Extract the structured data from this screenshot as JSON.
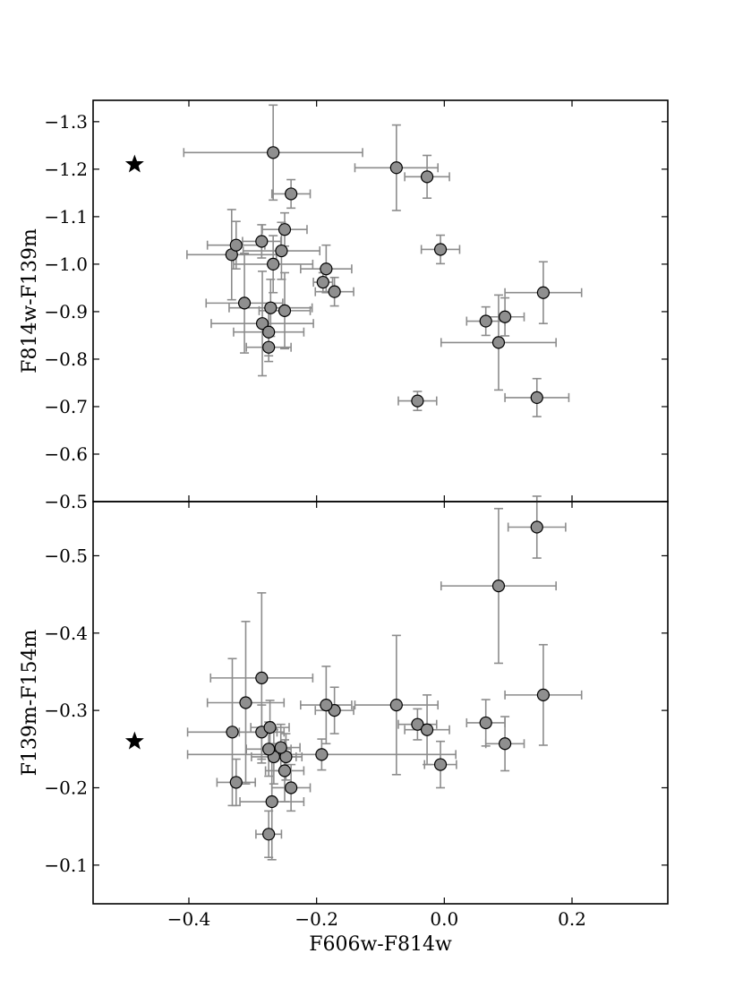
{
  "chart_data": [
    {
      "type": "scatter",
      "panel": "top",
      "xlabel": "",
      "ylabel": "F814w-F139m",
      "xlim": [
        -0.55,
        0.35
      ],
      "ylim": [
        -1.345,
        -0.5
      ],
      "y_inverted": true,
      "xticks": [],
      "yticks": [
        {
          "value": -0.5,
          "label": "−0.5"
        },
        {
          "value": -0.6,
          "label": "−0.6"
        },
        {
          "value": -0.7,
          "label": "−0.7"
        },
        {
          "value": -0.8,
          "label": "−0.8"
        },
        {
          "value": -0.9,
          "label": "−0.9"
        },
        {
          "value": -1.0,
          "label": "−1.0"
        },
        {
          "value": -1.1,
          "label": "−1.1"
        },
        {
          "value": -1.2,
          "label": "−1.2"
        },
        {
          "value": -1.3,
          "label": "−1.3"
        }
      ],
      "reference_star": {
        "x": -0.485,
        "y": -1.21
      },
      "points": [
        {
          "x": -0.285,
          "y": -0.875,
          "xerr": 0.08,
          "yerr": 0.11
        },
        {
          "x": -0.275,
          "y": -0.825,
          "xerr": 0.035,
          "yerr": 0.03
        },
        {
          "x": -0.275,
          "y": -0.857,
          "xerr": 0.055,
          "yerr": 0.05
        },
        {
          "x": -0.272,
          "y": -0.908,
          "xerr": 0.065,
          "yerr": 0.06
        },
        {
          "x": -0.25,
          "y": -0.902,
          "xerr": 0.04,
          "yerr": 0.08
        },
        {
          "x": -0.313,
          "y": -0.918,
          "xerr": 0.06,
          "yerr": 0.105
        },
        {
          "x": -0.268,
          "y": -1.0,
          "xerr": 0.062,
          "yerr": 0.06
        },
        {
          "x": -0.333,
          "y": -1.02,
          "xerr": 0.07,
          "yerr": 0.095
        },
        {
          "x": -0.326,
          "y": -1.04,
          "xerr": 0.045,
          "yerr": 0.05
        },
        {
          "x": -0.286,
          "y": -1.048,
          "xerr": 0.03,
          "yerr": 0.035
        },
        {
          "x": -0.255,
          "y": -1.028,
          "xerr": 0.06,
          "yerr": 0.06
        },
        {
          "x": -0.25,
          "y": -1.073,
          "xerr": 0.035,
          "yerr": 0.035
        },
        {
          "x": -0.24,
          "y": -1.148,
          "xerr": 0.03,
          "yerr": 0.03
        },
        {
          "x": -0.268,
          "y": -1.235,
          "xerr": 0.14,
          "yerr": 0.1
        },
        {
          "x": -0.19,
          "y": -0.962,
          "xerr": 0.015,
          "yerr": 0.02
        },
        {
          "x": -0.172,
          "y": -0.942,
          "xerr": 0.03,
          "yerr": 0.03
        },
        {
          "x": -0.185,
          "y": -0.99,
          "xerr": 0.04,
          "yerr": 0.05
        },
        {
          "x": -0.042,
          "y": -0.712,
          "xerr": 0.03,
          "yerr": 0.02
        },
        {
          "x": 0.145,
          "y": -0.719,
          "xerr": 0.05,
          "yerr": 0.04
        },
        {
          "x": 0.085,
          "y": -0.835,
          "xerr": 0.09,
          "yerr": 0.1
        },
        {
          "x": 0.065,
          "y": -0.88,
          "xerr": 0.03,
          "yerr": 0.03
        },
        {
          "x": 0.095,
          "y": -0.889,
          "xerr": 0.03,
          "yerr": 0.04
        },
        {
          "x": 0.155,
          "y": -0.94,
          "xerr": 0.06,
          "yerr": 0.065
        },
        {
          "x": -0.006,
          "y": -1.031,
          "xerr": 0.03,
          "yerr": 0.03
        },
        {
          "x": -0.075,
          "y": -1.203,
          "xerr": 0.065,
          "yerr": 0.09
        },
        {
          "x": -0.027,
          "y": -1.184,
          "xerr": 0.035,
          "yerr": 0.045
        }
      ]
    },
    {
      "type": "scatter",
      "panel": "bottom",
      "xlabel": "F606w-F814w",
      "ylabel": "F139m-F154m",
      "xlim": [
        -0.55,
        0.35
      ],
      "ylim": [
        -0.57,
        -0.05
      ],
      "y_inverted": true,
      "xticks": [
        {
          "value": -0.4,
          "label": "−0.4"
        },
        {
          "value": -0.2,
          "label": "−0.2"
        },
        {
          "value": 0.0,
          "label": "0.0"
        },
        {
          "value": 0.2,
          "label": "0.2"
        }
      ],
      "yticks": [
        {
          "value": -0.1,
          "label": "−0.1"
        },
        {
          "value": -0.2,
          "label": "−0.2"
        },
        {
          "value": -0.3,
          "label": "−0.3"
        },
        {
          "value": -0.4,
          "label": "−0.4"
        },
        {
          "value": -0.5,
          "label": "−0.5"
        }
      ],
      "reference_star": {
        "x": -0.485,
        "y": -0.26
      },
      "points": [
        {
          "x": -0.275,
          "y": -0.14,
          "xerr": 0.02,
          "yerr": 0.03
        },
        {
          "x": -0.27,
          "y": -0.182,
          "xerr": 0.05,
          "yerr": 0.075
        },
        {
          "x": -0.326,
          "y": -0.207,
          "xerr": 0.03,
          "yerr": 0.03
        },
        {
          "x": -0.24,
          "y": -0.2,
          "xerr": 0.03,
          "yerr": 0.03
        },
        {
          "x": -0.25,
          "y": -0.222,
          "xerr": 0.03,
          "yerr": 0.04
        },
        {
          "x": -0.267,
          "y": -0.24,
          "xerr": 0.035,
          "yerr": 0.035
        },
        {
          "x": -0.248,
          "y": -0.24,
          "xerr": 0.025,
          "yerr": 0.03
        },
        {
          "x": -0.275,
          "y": -0.25,
          "xerr": 0.035,
          "yerr": 0.035
        },
        {
          "x": -0.256,
          "y": -0.252,
          "xerr": 0.03,
          "yerr": 0.03
        },
        {
          "x": -0.332,
          "y": -0.272,
          "xerr": 0.07,
          "yerr": 0.095
        },
        {
          "x": -0.286,
          "y": -0.272,
          "xerr": 0.035,
          "yerr": 0.035
        },
        {
          "x": -0.273,
          "y": -0.278,
          "xerr": 0.03,
          "yerr": 0.035
        },
        {
          "x": -0.311,
          "y": -0.31,
          "xerr": 0.06,
          "yerr": 0.105
        },
        {
          "x": -0.286,
          "y": -0.342,
          "xerr": 0.08,
          "yerr": 0.11
        },
        {
          "x": -0.192,
          "y": -0.243,
          "xerr": 0.21,
          "yerr": 0.02
        },
        {
          "x": -0.172,
          "y": -0.3,
          "xerr": 0.03,
          "yerr": 0.03
        },
        {
          "x": -0.185,
          "y": -0.307,
          "xerr": 0.04,
          "yerr": 0.05
        },
        {
          "x": -0.075,
          "y": -0.307,
          "xerr": 0.065,
          "yerr": 0.09
        },
        {
          "x": -0.042,
          "y": -0.282,
          "xerr": 0.03,
          "yerr": 0.02
        },
        {
          "x": -0.027,
          "y": -0.275,
          "xerr": 0.035,
          "yerr": 0.045
        },
        {
          "x": -0.006,
          "y": -0.23,
          "xerr": 0.025,
          "yerr": 0.03
        },
        {
          "x": 0.065,
          "y": -0.284,
          "xerr": 0.03,
          "yerr": 0.03
        },
        {
          "x": 0.095,
          "y": -0.257,
          "xerr": 0.03,
          "yerr": 0.035
        },
        {
          "x": 0.155,
          "y": -0.32,
          "xerr": 0.06,
          "yerr": 0.065
        },
        {
          "x": 0.085,
          "y": -0.461,
          "xerr": 0.09,
          "yerr": 0.1
        },
        {
          "x": 0.145,
          "y": -0.537,
          "xerr": 0.045,
          "yerr": 0.04
        }
      ]
    }
  ]
}
